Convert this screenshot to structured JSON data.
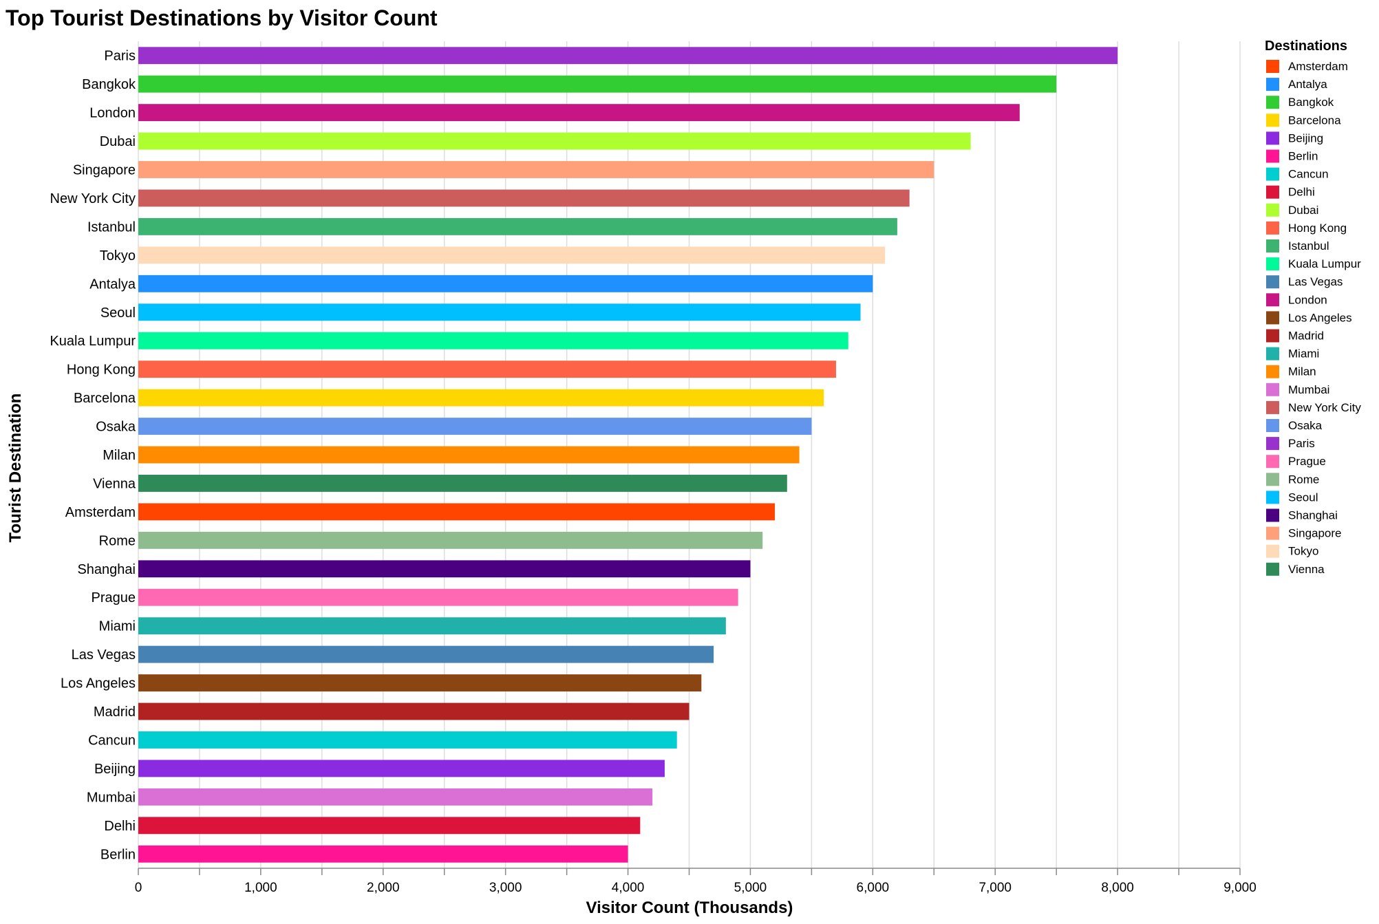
{
  "chart_data": {
    "type": "bar",
    "orientation": "horizontal",
    "title": "Top Tourist Destinations by Visitor Count",
    "xlabel": "Visitor Count (Thousands)",
    "ylabel": "Tourist Destination",
    "xlim": [
      0,
      9000
    ],
    "x_ticks": [
      0,
      1000,
      2000,
      3000,
      4000,
      5000,
      6000,
      7000,
      8000,
      9000
    ],
    "x_tick_labels": [
      "0",
      "1,000",
      "2,000",
      "3,000",
      "4,000",
      "5,000",
      "6,000",
      "7,000",
      "8,000",
      "9,000"
    ],
    "grid": true,
    "legend": {
      "title": "Destinations",
      "placement": "right",
      "entries": [
        "Amsterdam",
        "Antalya",
        "Bangkok",
        "Barcelona",
        "Beijing",
        "Berlin",
        "Cancun",
        "Delhi",
        "Dubai",
        "Hong Kong",
        "Istanbul",
        "Kuala Lumpur",
        "Las Vegas",
        "London",
        "Los Angeles",
        "Madrid",
        "Miami",
        "Milan",
        "Mumbai",
        "New York City",
        "Osaka",
        "Paris",
        "Prague",
        "Rome",
        "Seoul",
        "Shanghai",
        "Singapore",
        "Tokyo",
        "Vienna"
      ]
    },
    "categories": [
      "Paris",
      "Bangkok",
      "London",
      "Dubai",
      "Singapore",
      "New York City",
      "Istanbul",
      "Tokyo",
      "Antalya",
      "Seoul",
      "Kuala Lumpur",
      "Hong Kong",
      "Barcelona",
      "Osaka",
      "Milan",
      "Vienna",
      "Amsterdam",
      "Rome",
      "Shanghai",
      "Prague",
      "Miami",
      "Las Vegas",
      "Los Angeles",
      "Madrid",
      "Cancun",
      "Beijing",
      "Mumbai",
      "Delhi",
      "Berlin"
    ],
    "values": [
      8000,
      7500,
      7200,
      6800,
      6500,
      6300,
      6200,
      6100,
      6000,
      5900,
      5800,
      5700,
      5600,
      5500,
      5400,
      5300,
      5200,
      5100,
      5000,
      4900,
      4800,
      4700,
      4600,
      4500,
      4400,
      4300,
      4200,
      4100,
      4000
    ],
    "colors": {
      "Amsterdam": "#FF4500",
      "Antalya": "#1E90FF",
      "Bangkok": "#32CD32",
      "Barcelona": "#FFD700",
      "Beijing": "#8A2BE2",
      "Berlin": "#FF1493",
      "Cancun": "#00CED1",
      "Delhi": "#DC143C",
      "Dubai": "#ADFF2F",
      "Hong Kong": "#FF6347",
      "Istanbul": "#3CB371",
      "Kuala Lumpur": "#00FA9A",
      "Las Vegas": "#4682B4",
      "London": "#C71585",
      "Los Angeles": "#8B4513",
      "Madrid": "#B22222",
      "Miami": "#20B2AA",
      "Milan": "#FF8C00",
      "Mumbai": "#DA70D6",
      "New York City": "#CD5C5C",
      "Osaka": "#6495ED",
      "Paris": "#9932CC",
      "Prague": "#FF69B4",
      "Rome": "#8FBC8F",
      "Seoul": "#00BFFF",
      "Shanghai": "#4B0082",
      "Singapore": "#FFA07A",
      "Tokyo": "#FFDAB9",
      "Vienna": "#2E8B57"
    }
  }
}
